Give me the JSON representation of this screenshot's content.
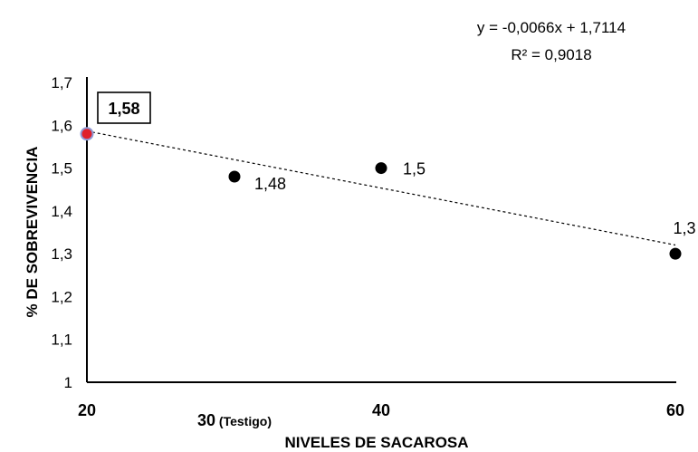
{
  "chart_data": {
    "type": "scatter",
    "x": [
      20,
      30,
      40,
      60
    ],
    "y": [
      1.58,
      1.48,
      1.5,
      1.3
    ],
    "point_labels": [
      "1,58",
      "1,48",
      "1,5",
      "1,3"
    ],
    "highlighted_point_index": 0,
    "xlabel": "NIVELES DE SACAROSA",
    "ylabel": "% DE SOBREVIVENCIA",
    "xlim": [
      20,
      60
    ],
    "ylim": [
      1,
      1.7
    ],
    "x_ticks": [
      {
        "value": 20,
        "label": "20",
        "suffix": ""
      },
      {
        "value": 30,
        "label": "30",
        "suffix": " (Testigo)"
      },
      {
        "value": 40,
        "label": "40",
        "suffix": ""
      },
      {
        "value": 60,
        "label": "60",
        "suffix": ""
      }
    ],
    "y_ticks": [
      {
        "value": 1,
        "label": "1"
      },
      {
        "value": 1.1,
        "label": "1,1"
      },
      {
        "value": 1.2,
        "label": "1,2"
      },
      {
        "value": 1.3,
        "label": "1,3"
      },
      {
        "value": 1.4,
        "label": "1,4"
      },
      {
        "value": 1.5,
        "label": "1,5"
      },
      {
        "value": 1.6,
        "label": "1,6"
      },
      {
        "value": 1.7,
        "label": "1,7"
      }
    ],
    "trendline": {
      "slope": -0.0066,
      "intercept": 1.7114,
      "equation": "y = -0,0066x + 1,7114",
      "r_squared": "R² = 0,9018"
    },
    "grid": false,
    "colors": {
      "point": "#000000",
      "highlight_fill": "#e0202a",
      "highlight_stroke": "#8f9ad6",
      "trendline": "#000000"
    }
  }
}
